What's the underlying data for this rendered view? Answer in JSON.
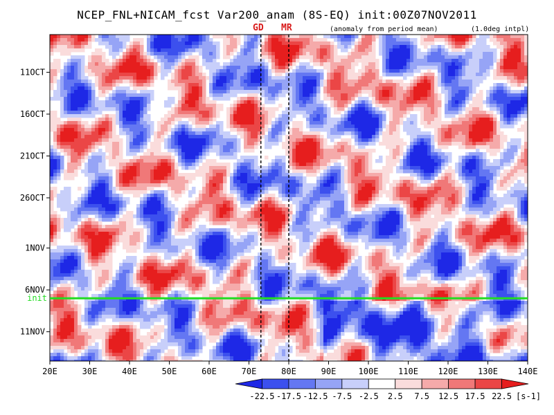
{
  "chart_data": {
    "type": "heatmap",
    "title": "NCEP_FNL+NICAM_fcst Var200_anam (8S-EQ) init:00Z07NOV2011",
    "note_left": "(anomaly from period mean)",
    "note_right": "(1.0deg intpl)",
    "markers": [
      {
        "label": "GD",
        "lon": 73
      },
      {
        "label": "MR",
        "lon": 80
      }
    ],
    "xlim": [
      20,
      140
    ],
    "x_ticks": [
      {
        "v": 20,
        "t": "20E"
      },
      {
        "v": 30,
        "t": "30E"
      },
      {
        "v": 40,
        "t": "40E"
      },
      {
        "v": 50,
        "t": "50E"
      },
      {
        "v": 60,
        "t": "60E"
      },
      {
        "v": 70,
        "t": "70E"
      },
      {
        "v": 80,
        "t": "80E"
      },
      {
        "v": 90,
        "t": "90E"
      },
      {
        "v": 100,
        "t": "100E"
      },
      {
        "v": 110,
        "t": "110E"
      },
      {
        "v": 120,
        "t": "120E"
      },
      {
        "v": 130,
        "t": "130E"
      },
      {
        "v": 140,
        "t": "140E"
      }
    ],
    "y_ticks": [
      {
        "day": 11,
        "t": "11OCT"
      },
      {
        "day": 16,
        "t": "16OCT"
      },
      {
        "day": 21,
        "t": "21OCT"
      },
      {
        "day": 26,
        "t": "26OCT"
      },
      {
        "day": 32,
        "t": "1NOV"
      },
      {
        "day": 37,
        "t": "6NOV"
      },
      {
        "day": 42,
        "t": "11NOV"
      }
    ],
    "ylim_days": [
      6.5,
      45.5
    ],
    "init_day": 38,
    "init_label": "init",
    "colorbar": {
      "unit": "[s-1]",
      "levels": [
        "-22.5",
        "-17.5",
        "-12.5",
        "-7.5",
        "-2.5",
        "2.5",
        "7.5",
        "12.5",
        "17.5",
        "22.5"
      ],
      "colors": [
        "#1e28e6",
        "#3c50ee",
        "#6477f2",
        "#96a4f6",
        "#c8cffa",
        "#ffffff",
        "#fadcdc",
        "#f5aaaa",
        "#f07878",
        "#eb4646",
        "#e61e1e"
      ]
    },
    "colors": {
      "init_line": "#22dd22",
      "marker_text": "#d81b1b"
    }
  }
}
